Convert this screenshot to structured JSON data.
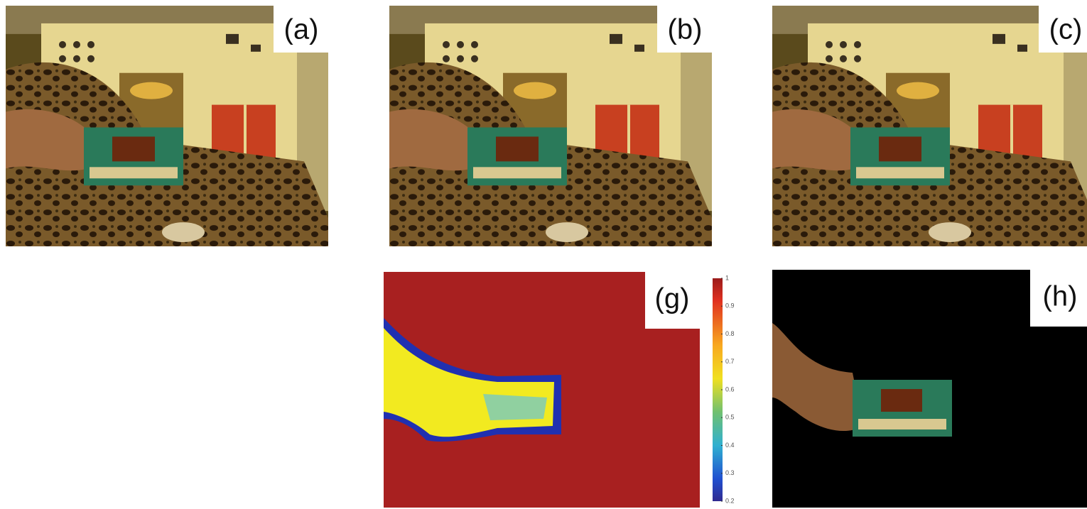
{
  "panels": [
    {
      "label": "(a)"
    },
    {
      "label": "(b)"
    },
    {
      "label": "(c)"
    },
    {
      "label": "(g)"
    },
    {
      "label": "(h)"
    }
  ],
  "colorbar": {
    "ticks": [
      1,
      0.9,
      0.8,
      0.7,
      0.6,
      0.5,
      0.4,
      0.3,
      0.2
    ]
  }
}
